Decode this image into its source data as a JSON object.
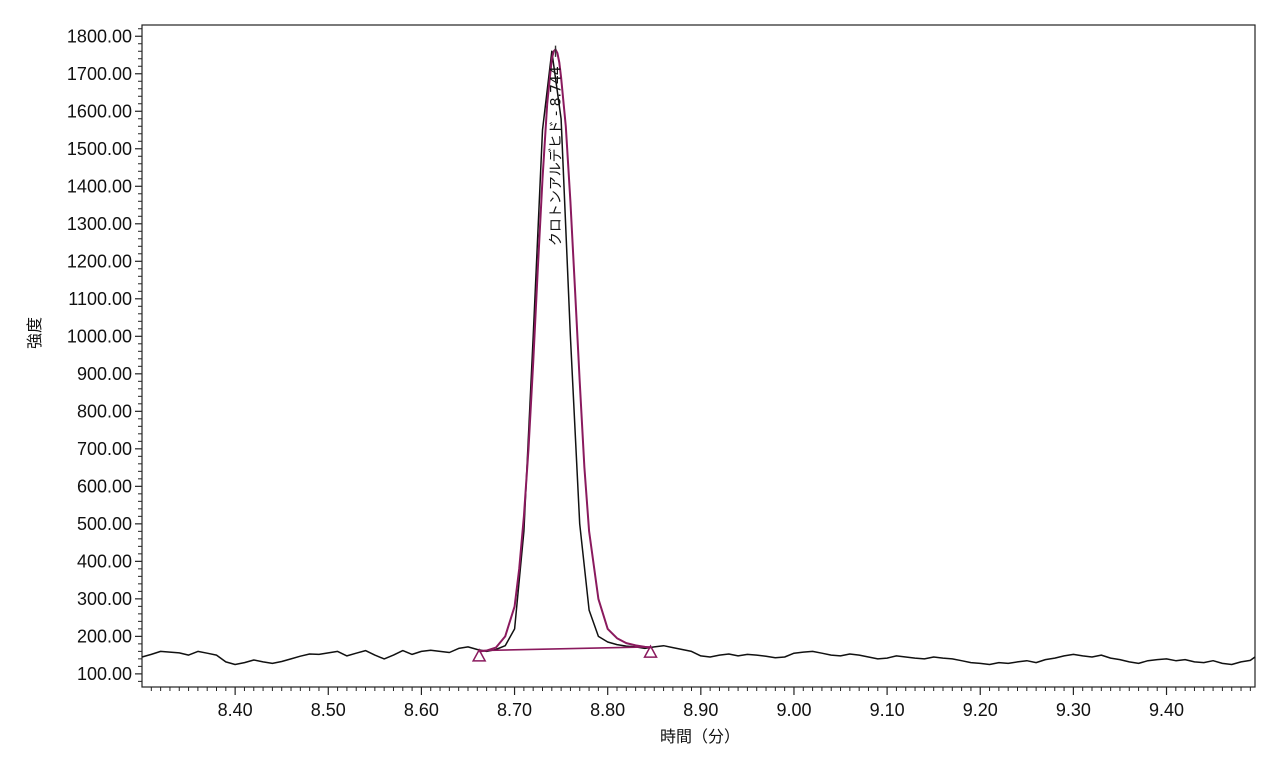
{
  "chart_data": {
    "type": "line",
    "xlabel": "時間（分）",
    "ylabel": "強度",
    "xlim": [
      8.3,
      9.495
    ],
    "ylim": [
      65,
      1830
    ],
    "x_ticks": [
      8.4,
      8.5,
      8.6,
      8.7,
      8.8,
      8.9,
      9.0,
      9.1,
      9.2,
      9.3,
      9.4
    ],
    "x_tick_labels": [
      "8.40",
      "8.50",
      "8.60",
      "8.70",
      "8.80",
      "8.90",
      "9.00",
      "9.10",
      "9.20",
      "9.30",
      "9.40"
    ],
    "y_ticks": [
      100,
      200,
      300,
      400,
      500,
      600,
      700,
      800,
      900,
      1000,
      1100,
      1200,
      1300,
      1400,
      1500,
      1600,
      1700,
      1800
    ],
    "y_tick_labels": [
      "100.00",
      "200.00",
      "300.00",
      "400.00",
      "500.00",
      "600.00",
      "700.00",
      "800.00",
      "900.00",
      "1000.00",
      "1100.00",
      "1200.00",
      "1300.00",
      "1400.00",
      "1500.00",
      "1600.00",
      "1700.00",
      "1800.00"
    ],
    "grid": false,
    "series": [
      {
        "color": "#111111",
        "x": [
          8.3,
          8.31,
          8.32,
          8.33,
          8.34,
          8.35,
          8.36,
          8.37,
          8.38,
          8.39,
          8.4,
          8.41,
          8.42,
          8.43,
          8.44,
          8.45,
          8.46,
          8.47,
          8.48,
          8.49,
          8.5,
          8.51,
          8.52,
          8.53,
          8.54,
          8.55,
          8.56,
          8.57,
          8.58,
          8.59,
          8.6,
          8.61,
          8.62,
          8.63,
          8.64,
          8.65,
          8.66,
          8.67,
          8.68,
          8.69,
          8.7,
          8.71,
          8.72,
          8.73,
          8.74,
          8.75,
          8.76,
          8.77,
          8.78,
          8.79,
          8.8,
          8.81,
          8.82,
          8.83,
          8.84,
          8.85,
          8.86,
          8.87,
          8.88,
          8.89,
          8.9,
          8.91,
          8.92,
          8.93,
          8.94,
          8.95,
          8.96,
          8.97,
          8.98,
          8.99,
          9.0,
          9.01,
          9.02,
          9.03,
          9.04,
          9.05,
          9.06,
          9.07,
          9.08,
          9.09,
          9.1,
          9.11,
          9.12,
          9.13,
          9.14,
          9.15,
          9.16,
          9.17,
          9.18,
          9.19,
          9.2,
          9.21,
          9.22,
          9.23,
          9.24,
          9.25,
          9.26,
          9.27,
          9.28,
          9.29,
          9.3,
          9.31,
          9.32,
          9.33,
          9.34,
          9.35,
          9.36,
          9.37,
          9.38,
          9.39,
          9.4,
          9.41,
          9.42,
          9.43,
          9.44,
          9.45,
          9.46,
          9.47,
          9.48,
          9.49,
          9.495
        ],
        "y": [
          145,
          152,
          160,
          158,
          156,
          150,
          160,
          155,
          150,
          132,
          125,
          130,
          137,
          132,
          128,
          133,
          140,
          147,
          153,
          152,
          156,
          160,
          148,
          155,
          162,
          150,
          140,
          150,
          162,
          152,
          160,
          163,
          160,
          157,
          168,
          172,
          165,
          160,
          165,
          175,
          220,
          480,
          1000,
          1550,
          1760,
          1580,
          1000,
          500,
          270,
          200,
          185,
          178,
          174,
          172,
          168,
          172,
          175,
          170,
          165,
          160,
          148,
          145,
          150,
          153,
          148,
          152,
          150,
          147,
          143,
          145,
          155,
          158,
          160,
          155,
          150,
          148,
          153,
          150,
          145,
          140,
          142,
          148,
          145,
          142,
          140,
          145,
          142,
          140,
          135,
          130,
          128,
          125,
          130,
          128,
          132,
          135,
          130,
          138,
          142,
          148,
          152,
          148,
          145,
          150,
          142,
          138,
          132,
          128,
          135,
          138,
          140,
          135,
          138,
          132,
          130,
          135,
          128,
          125,
          132,
          136,
          145
        ]
      },
      {
        "color": "#8a1a5e",
        "x": [
          8.662,
          8.67,
          8.68,
          8.69,
          8.7,
          8.705,
          8.71,
          8.715,
          8.72,
          8.725,
          8.73,
          8.735,
          8.74,
          8.742,
          8.744,
          8.746,
          8.748,
          8.75,
          8.755,
          8.76,
          8.765,
          8.77,
          8.775,
          8.78,
          8.79,
          8.8,
          8.81,
          8.82,
          8.83,
          8.84,
          8.846
        ],
        "y": [
          160,
          162,
          170,
          200,
          280,
          380,
          520,
          700,
          930,
          1180,
          1420,
          1620,
          1740,
          1760,
          1765,
          1755,
          1730,
          1690,
          1560,
          1360,
          1120,
          880,
          650,
          480,
          300,
          220,
          195,
          182,
          176,
          172,
          170
        ]
      }
    ],
    "baseline": {
      "color": "#8a1a5e",
      "x": [
        8.662,
        8.846
      ],
      "y": [
        162,
        172
      ]
    },
    "peak_markers": [
      {
        "x": 8.662,
        "y": 148
      },
      {
        "x": 8.846,
        "y": 158
      }
    ],
    "peak_apex": {
      "x": 8.744,
      "y": 1775
    },
    "annotations": [
      {
        "text": "クロトンアルデヒド - 8.744",
        "x": 8.744,
        "y": 1720,
        "rotation": -90
      }
    ]
  }
}
